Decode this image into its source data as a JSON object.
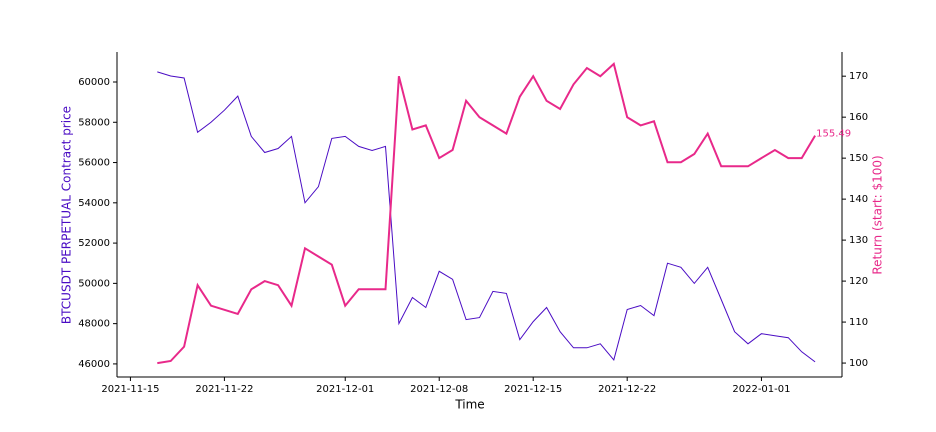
{
  "chart_data": {
    "type": "line",
    "x_label": "Time",
    "y_label": "BTCUSDT PERPETUAL Contract price",
    "y2_label": "Return (start: $100)",
    "x": [
      "2021-11-17",
      "2021-11-18",
      "2021-11-19",
      "2021-11-20",
      "2021-11-21",
      "2021-11-22",
      "2021-11-23",
      "2021-11-24",
      "2021-11-25",
      "2021-11-26",
      "2021-11-27",
      "2021-11-28",
      "2021-11-29",
      "2021-11-30",
      "2021-12-01",
      "2021-12-02",
      "2021-12-03",
      "2021-12-04",
      "2021-12-05",
      "2021-12-06",
      "2021-12-07",
      "2021-12-08",
      "2021-12-09",
      "2021-12-10",
      "2021-12-11",
      "2021-12-12",
      "2021-12-13",
      "2021-12-14",
      "2021-12-15",
      "2021-12-16",
      "2021-12-17",
      "2021-12-18",
      "2021-12-19",
      "2021-12-20",
      "2021-12-21",
      "2021-12-22",
      "2021-12-23",
      "2021-12-24",
      "2021-12-25",
      "2021-12-26",
      "2021-12-27",
      "2021-12-28",
      "2021-12-29",
      "2021-12-30",
      "2021-12-31",
      "2022-01-01",
      "2022-01-02",
      "2022-01-03",
      "2022-01-04",
      "2022-01-05"
    ],
    "series": [
      {
        "color": "#4a0cc4",
        "values": [
          60500,
          60300,
          60200,
          57500,
          58000,
          58600,
          59300,
          57300,
          56500,
          56700,
          57300,
          54000,
          54800,
          57200,
          57300,
          56800,
          56600,
          56800,
          48000,
          49300,
          48800,
          50600,
          50200,
          48200,
          48300,
          49600,
          49500,
          47200,
          48100,
          48800,
          47600,
          46800,
          46800,
          47000,
          46200,
          48700,
          48900,
          48400,
          51000,
          50800,
          50000,
          50800,
          49200,
          47600,
          47000,
          47500,
          47400,
          47300,
          46600,
          46100
        ]
      },
      {
        "color": "#e8298a",
        "axis": "y2",
        "values": [
          100,
          100.5,
          104,
          119,
          114,
          113,
          112,
          118,
          120,
          119,
          114,
          128,
          126,
          124,
          114,
          118,
          118,
          118,
          170,
          157,
          158,
          150,
          152,
          164,
          160,
          158,
          156,
          165,
          170,
          164,
          162,
          168,
          172,
          170,
          173,
          160,
          158,
          159,
          149,
          149,
          151,
          156,
          148,
          148,
          148,
          150,
          152,
          150,
          150,
          155.49
        ]
      }
    ],
    "xlim": [
      "2021-11-14",
      "2022-01-07"
    ],
    "xticks": [
      "2021-11-15",
      "2021-11-22",
      "2021-12-01",
      "2021-12-08",
      "2021-12-15",
      "2021-12-22",
      "2022-01-01"
    ],
    "ylim": [
      45350,
      61490
    ],
    "yticks": [
      46000,
      48000,
      50000,
      52000,
      54000,
      56000,
      58000,
      60000
    ],
    "y2lim": [
      96.6,
      175.9
    ],
    "y2ticks": [
      100,
      110,
      120,
      130,
      140,
      150,
      160,
      170
    ]
  }
}
